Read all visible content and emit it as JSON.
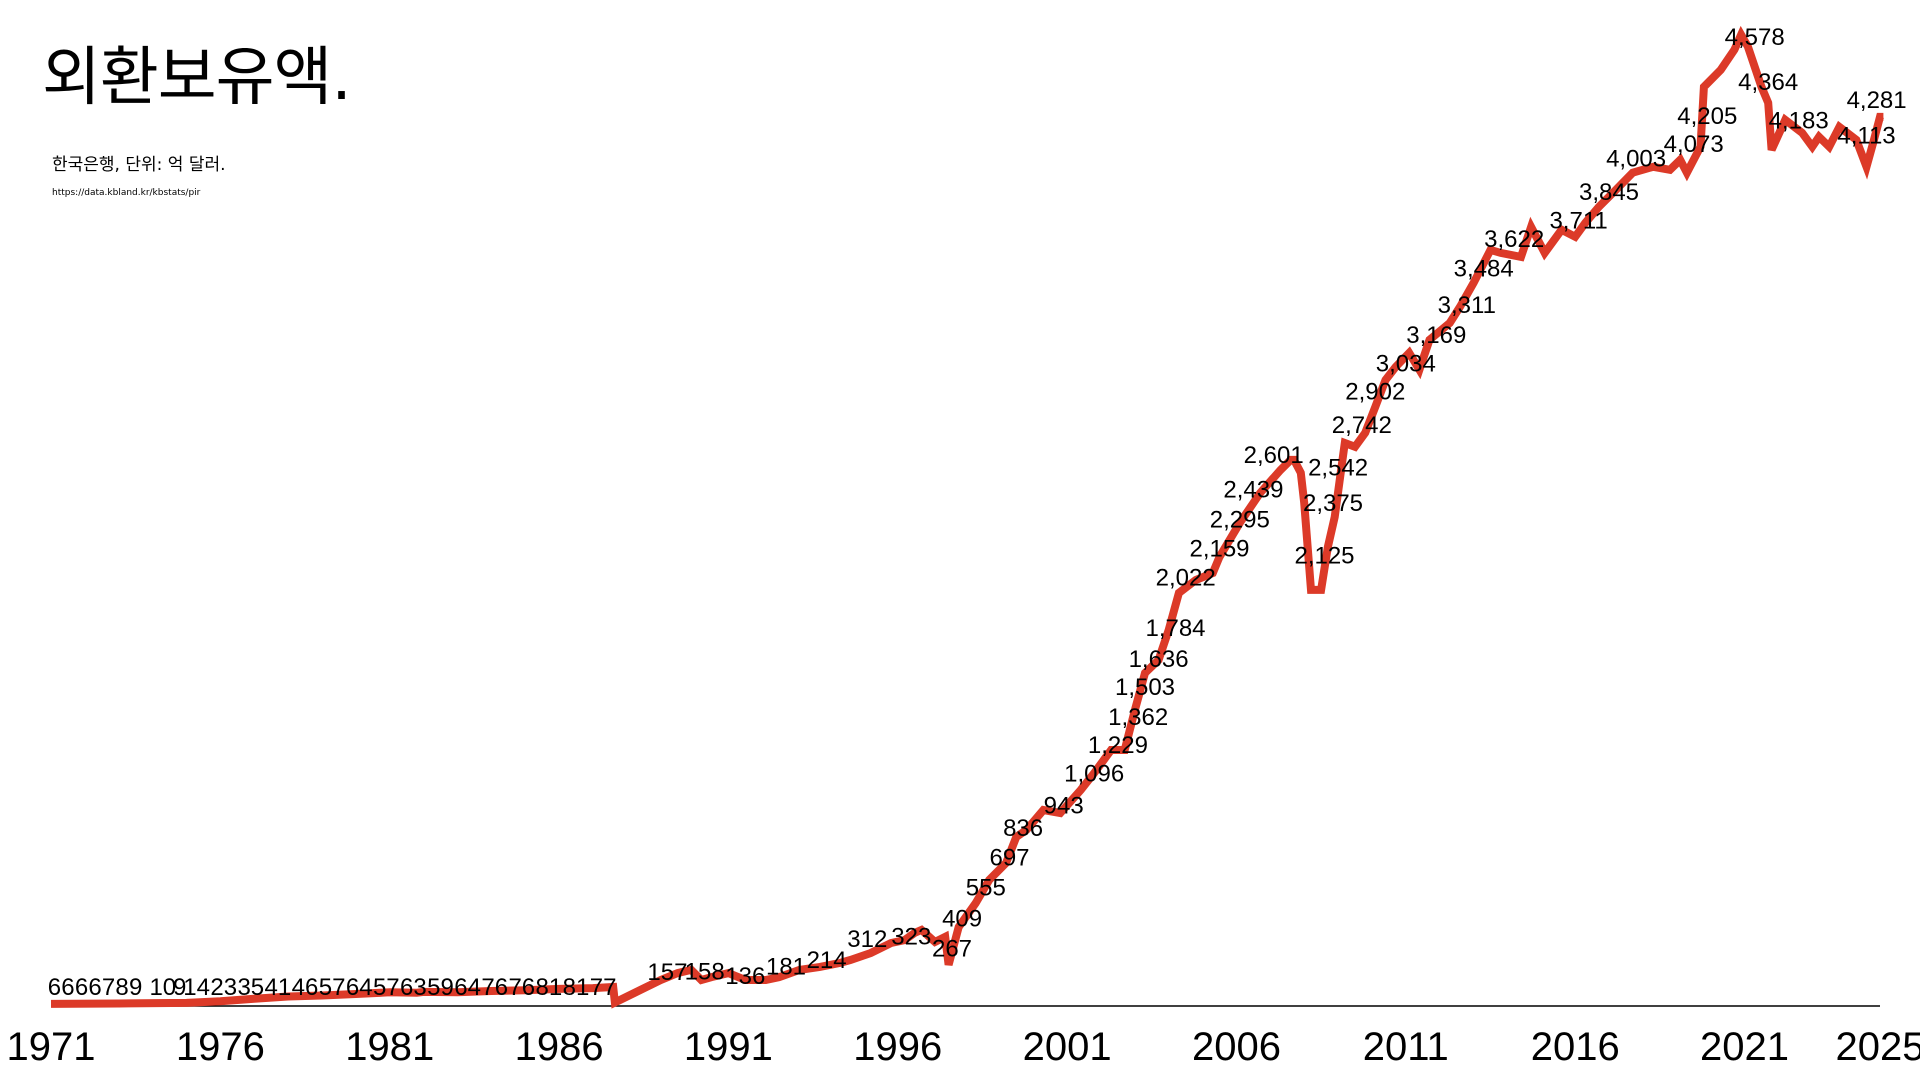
{
  "header": {
    "title": "외환보유액.",
    "subtitle": "한국은행, 단위: 억 달러.",
    "source": "https://data.kbland.kr/kbstats/pir"
  },
  "colors": {
    "line": "#dc3a28",
    "axis": "#000000"
  },
  "chart_data": {
    "type": "line",
    "title": "외환보유액.",
    "subtitle": "한국은행, 단위: 억 달러.",
    "xlabel": "",
    "ylabel": "",
    "xlim": [
      1971,
      2025
    ],
    "ylim": [
      0,
      4578
    ],
    "grid": false,
    "x_ticks": [
      "1971",
      "1976",
      "1981",
      "1986",
      "1991",
      "1996",
      "2001",
      "2006",
      "2011",
      "2016",
      "2021",
      "2025"
    ],
    "series": [
      {
        "name": "외환보유액",
        "points": [
          [
            1971,
            5
          ],
          [
            1973,
            7
          ],
          [
            1975,
            10
          ],
          [
            1976,
            18
          ],
          [
            1977,
            30
          ],
          [
            1978,
            40
          ],
          [
            1979,
            45
          ],
          [
            1980,
            52
          ],
          [
            1981,
            60
          ],
          [
            1981.8,
            58
          ],
          [
            1982,
            62
          ],
          [
            1983,
            60
          ],
          [
            1984,
            66
          ],
          [
            1985,
            70
          ],
          [
            1986,
            76
          ],
          [
            1987,
            80
          ],
          [
            1987.6,
            85
          ],
          [
            1987.65,
            12
          ],
          [
            1988.4,
            71
          ],
          [
            1989.0,
            118
          ],
          [
            1989.5,
            151
          ],
          [
            1989.9,
            166
          ],
          [
            1990.2,
            118
          ],
          [
            1990.5,
            132
          ],
          [
            1991.0,
            151
          ],
          [
            1991.5,
            118
          ],
          [
            1992.1,
            118
          ],
          [
            1992.5,
            132
          ],
          [
            1993.1,
            166
          ],
          [
            1993.7,
            180
          ],
          [
            1994.3,
            199
          ],
          [
            1994.6,
            213
          ],
          [
            1995.2,
            246
          ],
          [
            1995.8,
            293
          ],
          [
            1996.2,
            307
          ],
          [
            1996.5,
            341
          ],
          [
            1996.7,
            355
          ],
          [
            1997.1,
            298
          ],
          [
            1997.4,
            322
          ],
          [
            1997.5,
            190
          ],
          [
            1997.8,
            369
          ],
          [
            1998.3,
            482
          ],
          [
            1998.7,
            591
          ],
          [
            1999.2,
            672
          ],
          [
            1999.5,
            795
          ],
          [
            1999.8,
            828
          ],
          [
            2000.3,
            922
          ],
          [
            2000.8,
            908
          ],
          [
            2001.4,
            1017
          ],
          [
            2001.8,
            1097
          ],
          [
            2002.3,
            1206
          ],
          [
            2002.7,
            1206
          ],
          [
            2003.0,
            1395
          ],
          [
            2003.3,
            1570
          ],
          [
            2003.7,
            1632
          ],
          [
            2004.0,
            1774
          ],
          [
            2004.3,
            1949
          ],
          [
            2004.8,
            2010
          ],
          [
            2005.3,
            2043
          ],
          [
            2005.5,
            2119
          ],
          [
            2006.1,
            2280
          ],
          [
            2006.7,
            2422
          ],
          [
            2007.3,
            2530
          ],
          [
            2007.6,
            2578
          ],
          [
            2007.7,
            2578
          ],
          [
            2007.9,
            2517
          ],
          [
            2008.0,
            2375
          ],
          [
            2008.2,
            1963
          ],
          [
            2008.5,
            1963
          ],
          [
            2008.7,
            2167
          ],
          [
            2008.9,
            2308
          ],
          [
            2009.1,
            2545
          ],
          [
            2009.2,
            2658
          ],
          [
            2009.5,
            2640
          ],
          [
            2009.8,
            2706
          ],
          [
            2010.1,
            2829
          ],
          [
            2010.4,
            2956
          ],
          [
            2010.7,
            3018
          ],
          [
            2011.1,
            3084
          ],
          [
            2011.4,
            3004
          ],
          [
            2011.7,
            3146
          ],
          [
            2012.3,
            3226
          ],
          [
            2012.6,
            3302
          ],
          [
            2013.0,
            3415
          ],
          [
            2013.5,
            3571
          ],
          [
            2013.8,
            3557
          ],
          [
            2014.4,
            3538
          ],
          [
            2014.7,
            3680
          ],
          [
            2015.1,
            3557
          ],
          [
            2015.6,
            3666
          ],
          [
            2016.0,
            3633
          ],
          [
            2016.3,
            3699
          ],
          [
            2016.7,
            3775
          ],
          [
            2017.2,
            3855
          ],
          [
            2017.7,
            3936
          ],
          [
            2018.3,
            3964
          ],
          [
            2018.8,
            3950
          ],
          [
            2019.1,
            3997
          ],
          [
            2019.3,
            3936
          ],
          [
            2019.7,
            4059
          ],
          [
            2019.8,
            4342
          ],
          [
            2020.3,
            4423
          ],
          [
            2020.7,
            4518
          ],
          [
            2020.9,
            4589
          ],
          [
            2021.1,
            4532
          ],
          [
            2021.5,
            4342
          ],
          [
            2021.7,
            4267
          ],
          [
            2021.8,
            4044
          ],
          [
            2022.2,
            4186
          ],
          [
            2022.7,
            4125
          ],
          [
            2023.0,
            4059
          ],
          [
            2023.2,
            4106
          ],
          [
            2023.5,
            4059
          ],
          [
            2023.8,
            4153
          ],
          [
            2024.3,
            4092
          ],
          [
            2024.6,
            3964
          ],
          [
            2024.8,
            4078
          ],
          [
            2025.0,
            4200
          ],
          [
            2025.1,
            4200
          ]
        ]
      }
    ],
    "data_labels": [
      {
        "x": 1971.1,
        "value": 6,
        "text": "6"
      },
      {
        "x": 1971.5,
        "value": 6,
        "text": "6"
      },
      {
        "x": 1971.9,
        "value": 6,
        "text": "6"
      },
      {
        "x": 1972.3,
        "value": 6,
        "text": "6"
      },
      {
        "x": 1972.7,
        "value": 7,
        "text": "7"
      },
      {
        "x": 1973.1,
        "value": 8,
        "text": "8"
      },
      {
        "x": 1973.5,
        "value": 9,
        "text": "9"
      },
      {
        "x": 1974.3,
        "value": 10,
        "text": "10"
      },
      {
        "x": 1974.8,
        "value": 9,
        "text": "9"
      },
      {
        "x": 1975.3,
        "value": 14,
        "text": "14"
      },
      {
        "x": 1976.1,
        "value": 23,
        "text": "23"
      },
      {
        "x": 1976.9,
        "value": 35,
        "text": "35"
      },
      {
        "x": 1977.7,
        "value": 41,
        "text": "41"
      },
      {
        "x": 1978.5,
        "value": 46,
        "text": "46"
      },
      {
        "x": 1979.3,
        "value": 57,
        "text": "57"
      },
      {
        "x": 1980.1,
        "value": 64,
        "text": "64"
      },
      {
        "x": 1980.9,
        "value": 57,
        "text": "57"
      },
      {
        "x": 1981.7,
        "value": 63,
        "text": "63"
      },
      {
        "x": 1982.5,
        "value": 59,
        "text": "59"
      },
      {
        "x": 1983.3,
        "value": 64,
        "text": "64"
      },
      {
        "x": 1984.1,
        "value": 76,
        "text": "76"
      },
      {
        "x": 1984.9,
        "value": 76,
        "text": "76"
      },
      {
        "x": 1985.7,
        "value": 81,
        "text": "81"
      },
      {
        "x": 1986.5,
        "value": 81,
        "text": "81"
      },
      {
        "x": 1987.3,
        "value": 77,
        "text": "77"
      },
      {
        "x": 1989.2,
        "value": 157,
        "text": "157"
      },
      {
        "x": 1990.3,
        "value": 158,
        "text": "158"
      },
      {
        "x": 1991.5,
        "value": 136,
        "text": "136"
      },
      {
        "x": 1992.7,
        "value": 181,
        "text": "181"
      },
      {
        "x": 1993.9,
        "value": 214,
        "text": "214"
      },
      {
        "x": 1995.1,
        "value": 312,
        "text": "312"
      },
      {
        "x": 1996.4,
        "value": 323,
        "text": "323"
      },
      {
        "x": 1997.6,
        "value": 267,
        "text": "267"
      },
      {
        "x": 1997.9,
        "value": 409,
        "text": "409"
      },
      {
        "x": 1998.6,
        "value": 555,
        "text": "555"
      },
      {
        "x": 1999.3,
        "value": 697,
        "text": "697"
      },
      {
        "x": 1999.7,
        "value": 836,
        "text": "836"
      },
      {
        "x": 2000.9,
        "value": 943,
        "text": "943"
      },
      {
        "x": 2001.8,
        "value": 1096,
        "text": "1,096"
      },
      {
        "x": 2002.5,
        "value": 1229,
        "text": "1,229"
      },
      {
        "x": 2003.1,
        "value": 1362,
        "text": "1,362"
      },
      {
        "x": 2003.3,
        "value": 1503,
        "text": "1,503"
      },
      {
        "x": 2003.7,
        "value": 1636,
        "text": "1,636"
      },
      {
        "x": 2004.2,
        "value": 1784,
        "text": "1,784"
      },
      {
        "x": 2004.5,
        "value": 2022,
        "text": "2,022"
      },
      {
        "x": 2005.5,
        "value": 2159,
        "text": "2,159"
      },
      {
        "x": 2006.1,
        "value": 2295,
        "text": "2,295"
      },
      {
        "x": 2006.5,
        "value": 2439,
        "text": "2,439"
      },
      {
        "x": 2007.1,
        "value": 2601,
        "text": "2,601"
      },
      {
        "x": 2008.6,
        "value": 2125,
        "text": "2,125"
      },
      {
        "x": 2008.85,
        "value": 2375,
        "text": "2,375"
      },
      {
        "x": 2009.0,
        "value": 2542,
        "text": "2,542"
      },
      {
        "x": 2009.7,
        "value": 2742,
        "text": "2,742"
      },
      {
        "x": 2010.1,
        "value": 2902,
        "text": "2,902"
      },
      {
        "x": 2011.0,
        "value": 3034,
        "text": "3,034"
      },
      {
        "x": 2011.9,
        "value": 3169,
        "text": "3,169"
      },
      {
        "x": 2012.8,
        "value": 3311,
        "text": "3,311"
      },
      {
        "x": 2013.3,
        "value": 3484,
        "text": "3,484"
      },
      {
        "x": 2014.2,
        "value": 3622,
        "text": "3,622"
      },
      {
        "x": 2016.1,
        "value": 3711,
        "text": "3,711"
      },
      {
        "x": 2017.0,
        "value": 3845,
        "text": "3,845"
      },
      {
        "x": 2017.8,
        "value": 4003,
        "text": "4,003"
      },
      {
        "x": 2019.5,
        "value": 4073,
        "text": "4,073"
      },
      {
        "x": 2019.9,
        "value": 4205,
        "text": "4,205"
      },
      {
        "x": 2021.3,
        "value": 4578,
        "text": "4,578"
      },
      {
        "x": 2021.7,
        "value": 4364,
        "text": "4,364"
      },
      {
        "x": 2022.6,
        "value": 4183,
        "text": "4,183"
      },
      {
        "x": 2024.6,
        "value": 4113,
        "text": "4,113"
      },
      {
        "x": 2024.9,
        "value": 4281,
        "text": "4,281"
      }
    ]
  }
}
